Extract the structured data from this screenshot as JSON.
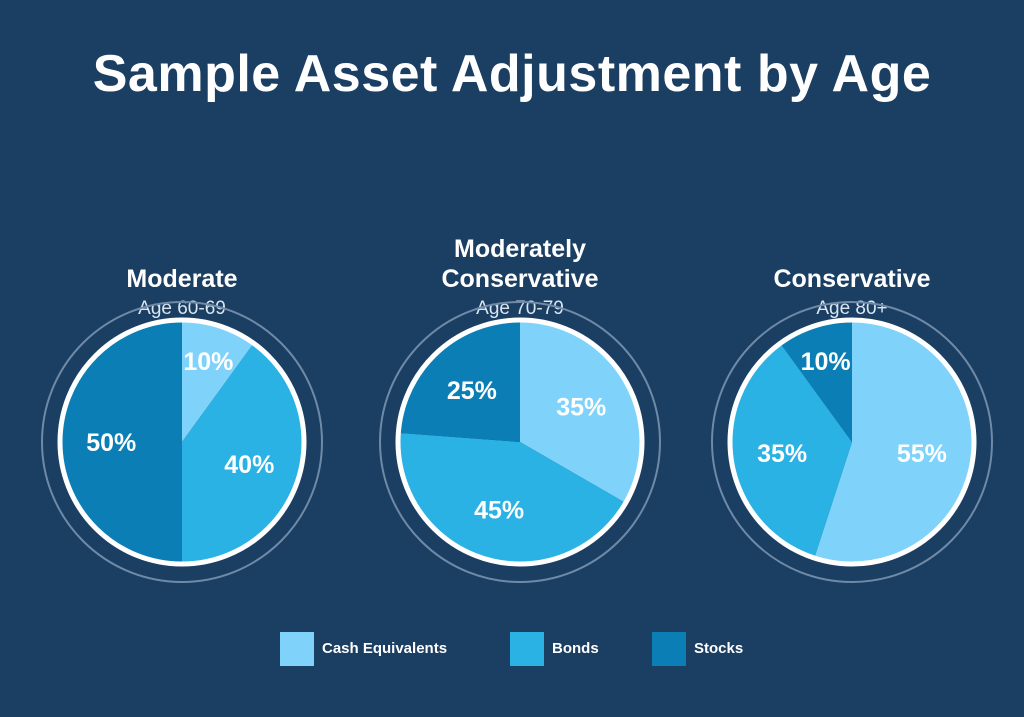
{
  "title": "Sample Asset Adjustment by Age",
  "colors": {
    "cash": "#7fd3fb",
    "bonds": "#2bb2e4",
    "stocks": "#0b7fb5",
    "background": "#1b3e63",
    "ring": "#6f8aa6"
  },
  "legend": [
    {
      "label": "Cash Equivalents",
      "color": "#7fd3fb"
    },
    {
      "label": "Bonds",
      "color": "#2bb2e4"
    },
    {
      "label": "Stocks",
      "color": "#0b7fb5"
    }
  ],
  "chart_data": [
    {
      "type": "pie",
      "title": "Moderate",
      "subtitle": "Age 60-69",
      "slices": [
        {
          "label": "Cash Equivalents",
          "value": 10,
          "display": "10%",
          "color": "#7fd3fb"
        },
        {
          "label": "Bonds",
          "value": 40,
          "display": "40%",
          "color": "#2bb2e4"
        },
        {
          "label": "Stocks",
          "value": 50,
          "display": "50%",
          "color": "#0b7fb5"
        }
      ]
    },
    {
      "type": "pie",
      "title": "Moderately\nConservative",
      "subtitle": "Age 70-79",
      "slices": [
        {
          "label": "Cash Equivalents",
          "value": 35,
          "display": "35%",
          "color": "#7fd3fb"
        },
        {
          "label": "Bonds",
          "value": 45,
          "display": "45%",
          "color": "#2bb2e4"
        },
        {
          "label": "Stocks",
          "value": 25,
          "display": "25%",
          "color": "#0b7fb5"
        }
      ]
    },
    {
      "type": "pie",
      "title": "Conservative",
      "subtitle": "Age 80+",
      "slices": [
        {
          "label": "Cash Equivalents",
          "value": 55,
          "display": "55%",
          "color": "#7fd3fb"
        },
        {
          "label": "Bonds",
          "value": 35,
          "display": "35%",
          "color": "#2bb2e4"
        },
        {
          "label": "Stocks",
          "value": 10,
          "display": "10%",
          "color": "#0b7fb5"
        }
      ]
    }
  ]
}
